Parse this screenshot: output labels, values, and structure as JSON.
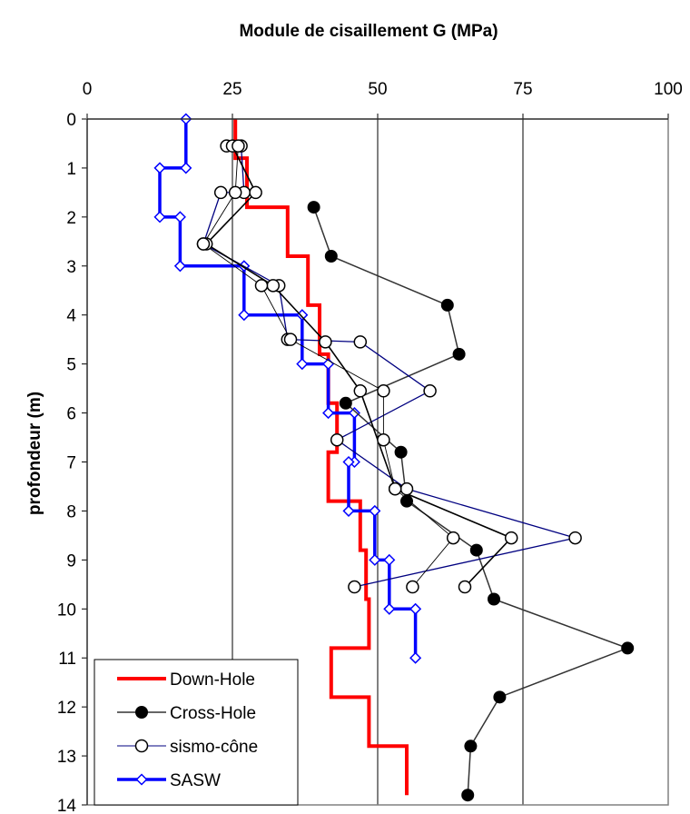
{
  "chart_data": {
    "type": "line",
    "title": "Module de cisaillement G (MPa)",
    "xlabel": "",
    "ylabel": "profondeur (m)",
    "x_axis_position": "top",
    "y_axis_inverted": true,
    "xlim": [
      0,
      100
    ],
    "ylim": [
      0,
      14
    ],
    "x_ticks": [
      "0",
      "25",
      "50",
      "75",
      "100"
    ],
    "y_ticks": [
      "0",
      "1",
      "2",
      "3",
      "4",
      "5",
      "6",
      "7",
      "8",
      "9",
      "10",
      "11",
      "12",
      "13",
      "14"
    ],
    "grid": "vertical",
    "legend_position": "bottom-left",
    "series": [
      {
        "name": "Down-Hole",
        "color": "#ff0000",
        "marker": "none",
        "points": [
          [
            25.5,
            0
          ],
          [
            25.5,
            0.8
          ],
          [
            27.5,
            0.8
          ],
          [
            27.5,
            1.8
          ],
          [
            34.5,
            1.8
          ],
          [
            34.5,
            2.8
          ],
          [
            38,
            2.8
          ],
          [
            38,
            3.8
          ],
          [
            40,
            3.8
          ],
          [
            40,
            4.8
          ],
          [
            41.5,
            4.8
          ],
          [
            41.5,
            5.8
          ],
          [
            43,
            5.8
          ],
          [
            43,
            6.8
          ],
          [
            41.5,
            6.8
          ],
          [
            41.5,
            7.8
          ],
          [
            47,
            7.8
          ],
          [
            47,
            8.8
          ],
          [
            48,
            8.8
          ],
          [
            48,
            9.8
          ],
          [
            48.5,
            9.8
          ],
          [
            48.5,
            10.8
          ],
          [
            42,
            10.8
          ],
          [
            42,
            11.8
          ],
          [
            48.5,
            11.8
          ],
          [
            48.5,
            12.8
          ],
          [
            55,
            12.8
          ],
          [
            55,
            13.8
          ]
        ]
      },
      {
        "name": "Cross-Hole",
        "color": "#333333",
        "marker": "filled-circle",
        "points": [
          [
            39,
            1.8
          ],
          [
            42,
            2.8
          ],
          [
            62,
            3.8
          ],
          [
            64,
            4.8
          ],
          [
            44.5,
            5.8
          ],
          [
            54,
            6.8
          ],
          [
            55,
            7.8
          ],
          [
            67,
            8.8
          ],
          [
            70,
            9.8
          ],
          [
            93,
            10.8
          ],
          [
            71,
            11.8
          ],
          [
            66,
            12.8
          ],
          [
            65.5,
            13.8
          ]
        ]
      },
      {
        "name": "sismo-cône",
        "color": "#000080",
        "marker": "open-circle",
        "paths": [
          [
            [
              24,
              0.55
            ],
            [
              26.5,
              0.55
            ],
            [
              27,
              1.5
            ],
            [
              23,
              1.5
            ],
            [
              20,
              2.55
            ],
            [
              33,
              3.4
            ],
            [
              34.5,
              4.5
            ],
            [
              47,
              4.55
            ],
            [
              59,
              5.55
            ],
            [
              43,
              6.55
            ],
            [
              55,
              7.55
            ],
            [
              84,
              8.55
            ],
            [
              46,
              9.55
            ]
          ],
          [
            [
              25,
              0.55
            ],
            [
              29,
              1.5
            ],
            [
              20.5,
              2.55
            ],
            [
              32,
              3.4
            ],
            [
              41,
              4.55
            ],
            [
              47,
              5.55
            ],
            [
              53,
              7.55
            ],
            [
              73,
              8.55
            ],
            [
              65,
              9.55
            ]
          ],
          [
            [
              26,
              0.55
            ],
            [
              25.5,
              1.5
            ],
            [
              20,
              2.55
            ],
            [
              30,
              3.4
            ],
            [
              35,
              4.5
            ],
            [
              51,
              5.55
            ],
            [
              51,
              6.55
            ],
            [
              53,
              7.55
            ],
            [
              63,
              8.55
            ],
            [
              56,
              9.55
            ]
          ]
        ]
      },
      {
        "name": "SASW",
        "color": "#0000ff",
        "marker": "open-diamond",
        "points": [
          [
            17,
            0
          ],
          [
            17,
            1
          ],
          [
            12.5,
            1
          ],
          [
            12.5,
            2
          ],
          [
            16,
            2
          ],
          [
            16,
            3
          ],
          [
            27,
            3
          ],
          [
            27,
            4
          ],
          [
            37,
            4
          ],
          [
            37,
            5
          ],
          [
            41.5,
            5
          ],
          [
            41.5,
            6
          ],
          [
            46,
            6
          ],
          [
            46,
            7
          ],
          [
            45,
            7
          ],
          [
            45,
            8
          ],
          [
            49.5,
            8
          ],
          [
            49.5,
            9
          ],
          [
            52,
            9
          ],
          [
            52,
            10
          ],
          [
            56.5,
            10
          ],
          [
            56.5,
            11
          ]
        ]
      }
    ]
  }
}
